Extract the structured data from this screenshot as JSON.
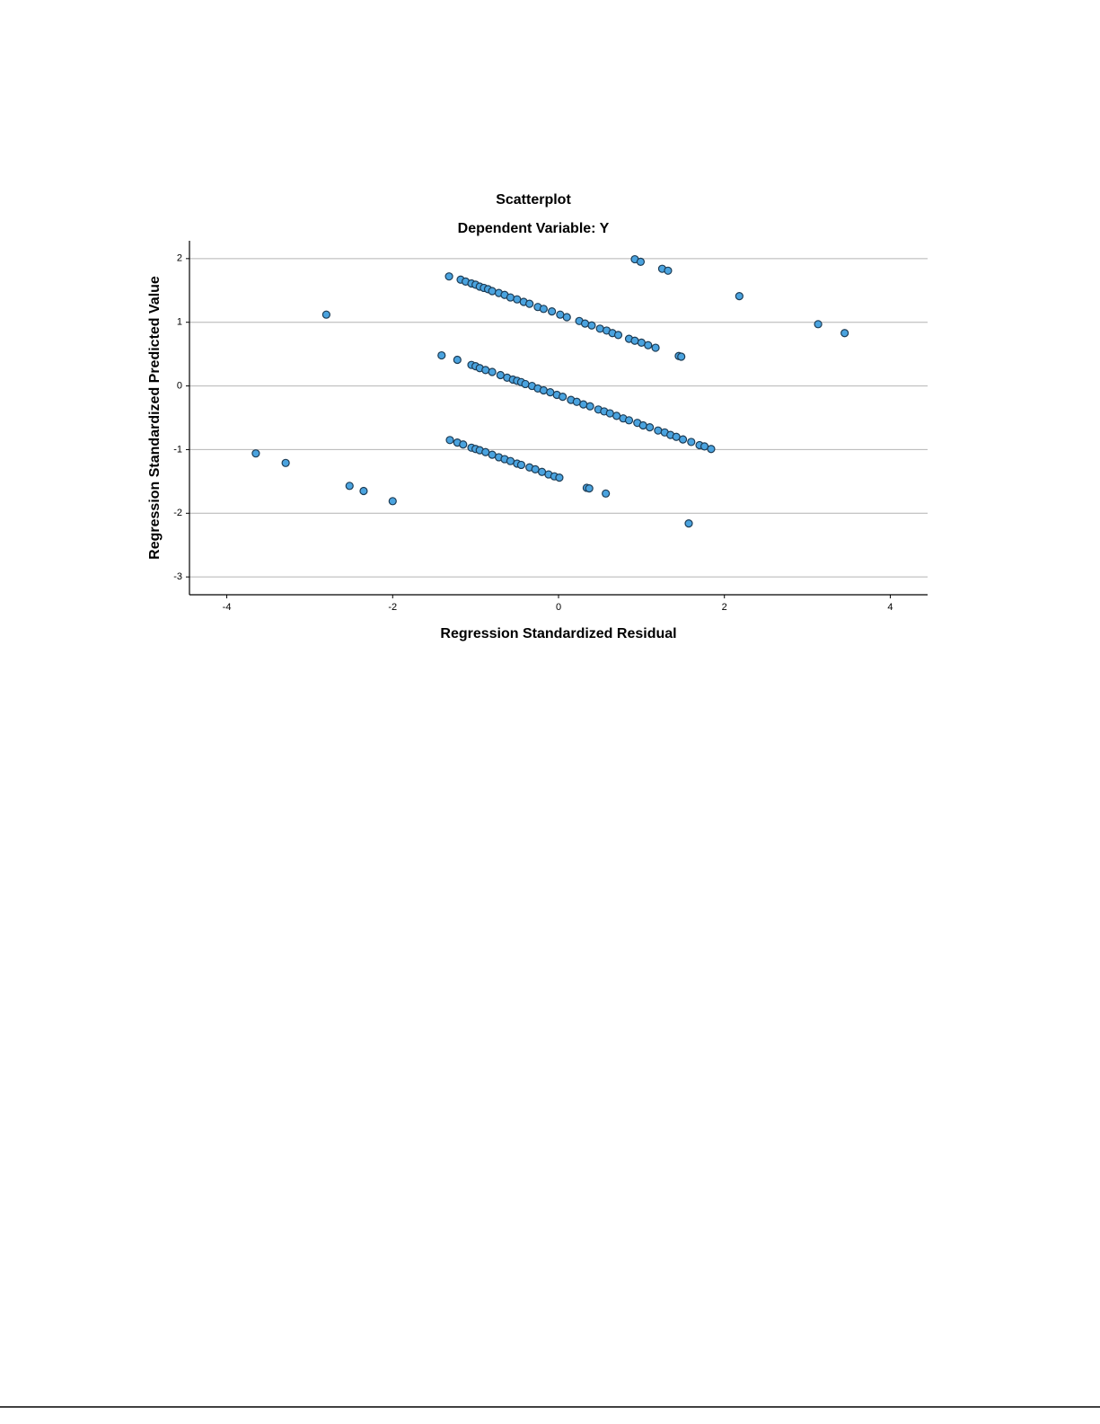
{
  "chart_data": {
    "type": "scatter",
    "title": "Scatterplot",
    "subtitle": "Dependent Variable: Y",
    "x_label": "Regression Standardized Residual",
    "y_label": "Regression Standardized Predicted Value",
    "color": "#4aa3df",
    "grid": true,
    "xlim": [
      -4.45,
      4.45
    ],
    "ylim": [
      -3.28,
      2.28
    ],
    "xticks": [
      -4,
      -2,
      0,
      2,
      4
    ],
    "yticks": [
      -3,
      -2,
      -1,
      0,
      1,
      2
    ],
    "x": [
      -3.65,
      -3.29,
      -2.8,
      -2.52,
      -2.35,
      -2.0,
      -1.41,
      -1.32,
      0.92,
      0.99,
      1.25,
      1.32,
      2.18,
      3.13,
      3.45,
      1.57,
      0.57,
      0.34,
      0.37,
      1.45,
      1.48,
      -1.18,
      -1.12,
      -1.05,
      -1.0,
      -0.95,
      -0.9,
      -0.85,
      -0.8,
      -0.72,
      -0.65,
      -0.58,
      -0.5,
      -0.42,
      -0.35,
      -0.25,
      -0.18,
      -0.08,
      0.02,
      0.1,
      0.25,
      0.32,
      0.4,
      0.5,
      0.58,
      0.65,
      0.72,
      0.85,
      0.92,
      1.0,
      1.08,
      1.17,
      -1.22,
      -1.05,
      -1.0,
      -0.95,
      -0.88,
      -0.8,
      -0.7,
      -0.62,
      -0.55,
      -0.5,
      -0.45,
      -0.4,
      -0.32,
      -0.25,
      -0.18,
      -0.1,
      -0.02,
      0.05,
      0.15,
      0.22,
      0.3,
      0.38,
      0.48,
      0.55,
      0.62,
      0.7,
      0.78,
      0.85,
      0.95,
      1.02,
      1.1,
      1.2,
      1.28,
      1.35,
      1.42,
      1.5,
      1.6,
      1.7,
      1.76,
      1.84,
      -1.31,
      -1.22,
      -1.15,
      -1.05,
      -1.0,
      -0.95,
      -0.88,
      -0.8,
      -0.72,
      -0.65,
      -0.58,
      -0.5,
      -0.45,
      -0.35,
      -0.28,
      -0.2,
      -0.12,
      -0.05,
      0.01
    ],
    "values": [
      -1.06,
      -1.21,
      1.12,
      -1.57,
      -1.65,
      -1.81,
      0.48,
      1.72,
      1.99,
      1.95,
      1.84,
      1.81,
      1.41,
      0.97,
      0.83,
      -2.16,
      -1.69,
      -1.6,
      -1.61,
      0.47,
      0.46,
      1.67,
      1.64,
      1.61,
      1.59,
      1.56,
      1.54,
      1.52,
      1.49,
      1.46,
      1.43,
      1.39,
      1.36,
      1.32,
      1.29,
      1.24,
      1.21,
      1.17,
      1.12,
      1.08,
      1.02,
      0.98,
      0.95,
      0.9,
      0.87,
      0.83,
      0.8,
      0.74,
      0.71,
      0.68,
      0.64,
      0.6,
      0.41,
      0.33,
      0.31,
      0.28,
      0.25,
      0.22,
      0.17,
      0.13,
      0.1,
      0.08,
      0.06,
      0.03,
      0.0,
      -0.04,
      -0.07,
      -0.1,
      -0.14,
      -0.17,
      -0.22,
      -0.25,
      -0.29,
      -0.32,
      -0.37,
      -0.4,
      -0.43,
      -0.47,
      -0.51,
      -0.54,
      -0.58,
      -0.62,
      -0.65,
      -0.7,
      -0.73,
      -0.77,
      -0.8,
      -0.84,
      -0.88,
      -0.93,
      -0.95,
      -0.99,
      -0.85,
      -0.89,
      -0.92,
      -0.97,
      -0.99,
      -1.01,
      -1.04,
      -1.08,
      -1.12,
      -1.15,
      -1.18,
      -1.22,
      -1.24,
      -1.28,
      -1.31,
      -1.35,
      -1.39,
      -1.42,
      -1.44
    ]
  }
}
